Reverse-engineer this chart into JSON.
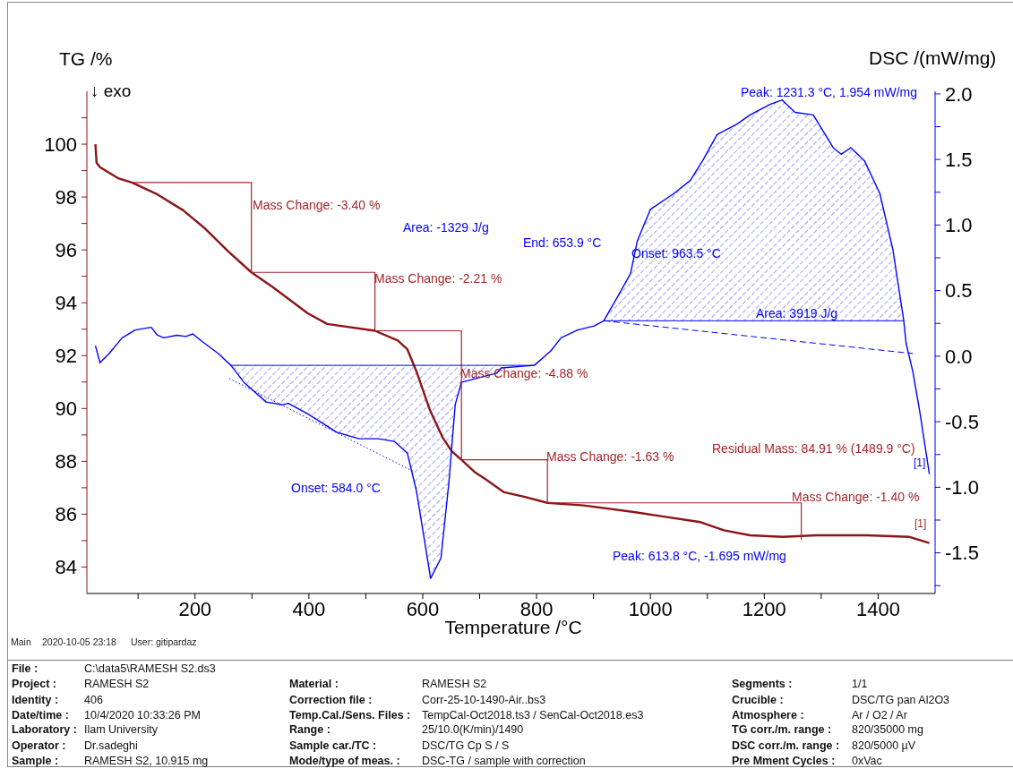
{
  "chart_data": [
    {
      "type": "line",
      "xlabel": "Temperature /°C",
      "ylabel": "TG /%",
      "y2label": "DSC /(mW/mg)",
      "annotations": [
        "↓ exo",
        "Peak: 1231.3 °C, 1.954 mW/mg",
        "Mass Change: -3.40 %",
        "Area: -1329 J/g",
        "End: 653.9 °C",
        "Onset: 963.5 °C",
        "Mass Change: -2.21 %",
        "Area: 3919 J/g",
        "Mass Change: -4.88 %",
        "Residual Mass: 84.91 % (1489.9 °C)",
        "Mass Change: -1.63 %",
        "[1]",
        "Onset: 584.0 °C",
        "Mass Change: -1.40 %",
        "[1]",
        "Peak: 613.8 °C, -1.695 mW/mg"
      ],
      "xlim": [
        10,
        1500
      ],
      "xticks": [
        {
          "value": 100,
          "label": null
        },
        200,
        {
          "value": 300,
          "label": null
        },
        400,
        {
          "value": 500,
          "label": null
        },
        600,
        {
          "value": 700,
          "label": null
        },
        800,
        {
          "value": 900,
          "label": null
        },
        1000,
        {
          "value": 1100,
          "label": null
        },
        1200,
        {
          "value": 1300,
          "label": null
        },
        1400
      ],
      "ylim": [
        83,
        102
      ],
      "yticks": [
        84,
        {
          "value": 85,
          "label": null
        },
        86,
        {
          "value": 87,
          "label": null
        },
        88,
        {
          "value": 89,
          "label": null
        },
        90,
        {
          "value": 91,
          "label": null
        },
        92,
        {
          "value": 93,
          "label": null
        },
        94,
        {
          "value": 95,
          "label": null
        },
        96,
        {
          "value": 97,
          "label": null
        },
        98,
        {
          "value": 99,
          "label": null
        },
        100,
        {
          "value": 101,
          "label": null
        }
      ],
      "y2lim": [
        -1.81,
        2.02
      ],
      "y2ticks": [
        {
          "value": -1.75,
          "label": null
        },
        -1.5,
        {
          "value": -1.25,
          "label": null
        },
        {
          "value": -1,
          "label": "-1.0"
        },
        {
          "value": -0.75,
          "label": null
        },
        -0.5,
        {
          "value": -0.25,
          "label": null
        },
        {
          "value": 0,
          "label": "0.0"
        },
        {
          "value": 0.25,
          "label": null
        },
        0.5,
        {
          "value": 0.75,
          "label": null
        },
        {
          "value": 1,
          "label": "1.0"
        },
        {
          "value": 1.25,
          "label": null
        },
        1.5,
        {
          "value": 1.75,
          "label": null
        },
        {
          "value": 2,
          "label": "2.0"
        }
      ],
      "series": [
        {
          "type": "line",
          "color": "#8c1515",
          "x": [
            25,
            27,
            33,
            66,
            89,
            134,
            179,
            218,
            258,
            299,
            336,
            398,
            432,
            516,
            556,
            573,
            589,
            612,
            635,
            651,
            668,
            691,
            709,
            743,
            778,
            819,
            883,
            971,
            1029,
            1088,
            1129,
            1175,
            1233,
            1291,
            1380,
            1455,
            1489.9
          ],
          "values": [
            100.0,
            99.3,
            99.13,
            98.7,
            98.55,
            98.1,
            97.5,
            96.8,
            95.95,
            95.15,
            94.6,
            93.6,
            93.2,
            92.94,
            92.57,
            92.24,
            91.4,
            89.97,
            88.9,
            88.38,
            88.06,
            87.6,
            87.34,
            86.83,
            86.66,
            86.43,
            86.33,
            86.08,
            85.89,
            85.7,
            85.39,
            85.2,
            85.14,
            85.2,
            85.2,
            85.14,
            84.91
          ]
        },
        {
          "type": "line",
          "color": "#0000ff",
          "axis": "y2",
          "x": [
            25,
            33,
            49,
            72,
            95,
            123,
            134,
            145,
            168,
            184,
            196,
            213,
            241,
            263,
            286,
            325,
            353,
            364,
            398,
            449,
            488,
            522,
            550,
            573,
            589,
            601,
            613.8,
            632,
            646,
            657,
            668,
            702,
            730,
            738,
            796,
            825,
            843,
            872,
            901,
            918,
            942,
            965,
            977,
            1000,
            1041,
            1070,
            1093,
            1117,
            1152,
            1175,
            1210,
            1231.3,
            1254,
            1286,
            1321,
            1335,
            1352,
            1376,
            1403,
            1426,
            1445,
            1449,
            1461,
            1473,
            1490
          ],
          "values": [
            0.08,
            -0.05,
            0.02,
            0.14,
            0.2,
            0.22,
            0.16,
            0.14,
            0.16,
            0.15,
            0.17,
            0.11,
            0.02,
            -0.07,
            -0.2,
            -0.35,
            -0.37,
            -0.36,
            -0.44,
            -0.58,
            -0.63,
            -0.63,
            -0.65,
            -0.74,
            -1.03,
            -1.35,
            -1.695,
            -1.54,
            -0.96,
            -0.37,
            -0.2,
            -0.16,
            -0.13,
            -0.09,
            -0.07,
            0.04,
            0.14,
            0.2,
            0.23,
            0.27,
            0.45,
            0.63,
            0.88,
            1.12,
            1.24,
            1.34,
            1.5,
            1.69,
            1.77,
            1.84,
            1.92,
            1.954,
            1.86,
            1.84,
            1.59,
            1.54,
            1.59,
            1.49,
            1.24,
            0.81,
            0.27,
            0.1,
            -0.12,
            -0.42,
            -0.9
          ],
          "lower": [
            null,
            null,
            null,
            null,
            null,
            null,
            null,
            null,
            null,
            null,
            null,
            null,
            null,
            -0.07,
            -0.2,
            -0.35,
            -0.37,
            -0.36,
            -0.44,
            -0.58,
            -0.63,
            -0.63,
            -0.65,
            -0.74,
            -1.03,
            -1.35,
            -1.695,
            -1.54,
            -0.96,
            -0.37,
            -0.2,
            -0.16,
            -0.13,
            -0.09,
            -0.07,
            null,
            null,
            null,
            null,
            0.27,
            0.27,
            0.27,
            0.27,
            0.27,
            0.27,
            0.27,
            0.27,
            0.27,
            0.27,
            0.27,
            0.27,
            0.27,
            0.27,
            0.27,
            0.27,
            0.27,
            0.27,
            0.27,
            0.27,
            0.27,
            0.27,
            null,
            null,
            null,
            null
          ],
          "upper": [
            null,
            null,
            null,
            null,
            null,
            null,
            null,
            null,
            null,
            null,
            null,
            null,
            null,
            -0.07,
            -0.07,
            -0.07,
            -0.07,
            -0.07,
            -0.07,
            -0.07,
            -0.07,
            -0.07,
            -0.07,
            -0.07,
            -0.07,
            -0.07,
            -0.07,
            -0.07,
            -0.07,
            -0.07,
            -0.07,
            -0.07,
            -0.07,
            -0.07,
            -0.07,
            null,
            null,
            null,
            null,
            0.27,
            0.45,
            0.63,
            0.88,
            1.12,
            1.24,
            1.34,
            1.5,
            1.69,
            1.77,
            1.84,
            1.92,
            1.954,
            1.86,
            1.84,
            1.59,
            1.54,
            1.59,
            1.49,
            1.24,
            0.81,
            0.27,
            null,
            null,
            null,
            null
          ]
        },
        {
          "type": "step",
          "color": "#a3262a",
          "x": [
            88,
            299,
            516,
            668,
            819,
            1265
          ],
          "values": [
            98.55,
            95.15,
            92.94,
            88.06,
            86.43,
            85.03
          ]
        },
        {
          "type": "line",
          "color": "#0000ff",
          "axis": "y2",
          "line_style": "dotted",
          "x": [
            260,
            584
          ],
          "values": [
            -0.17,
            -0.88
          ]
        },
        {
          "type": "line",
          "color": "#0000ff",
          "axis": "y2",
          "line_style": "dashed",
          "x": [
            918,
            1461
          ],
          "values": [
            0.27,
            0.02
          ]
        },
        {
          "type": "line",
          "color": "#0000ff",
          "axis": "y2",
          "x": [
            263,
            796
          ],
          "values": [
            -0.07,
            -0.07
          ]
        },
        {
          "type": "line",
          "color": "#0000ff",
          "axis": "y2",
          "x": [
            918,
            1445
          ],
          "values": [
            0.27,
            0.27
          ]
        }
      ]
    },
    {
      "type": "other",
      "annotations": [
        "Main",
        "2020-10-05 23:18",
        "User: gitipardaz",
        "File :",
        "C:\\data5\\RAMESH S2.ds3",
        "Project :",
        "RAMESH S2",
        "Material :",
        "RAMESH S2",
        "Segments :",
        "1/1",
        "Identity :",
        "406",
        "Correction file :",
        "Corr-25-10-1490-Air..bs3",
        "Crucible :",
        "DSC/TG pan Al2O3",
        "Date/time :",
        "10/4/2020 10:33:26 PM",
        "Temp.Cal./Sens. Files :",
        "TempCal-Oct2018.ts3 / SenCal-Oct2018.es3",
        "Atmosphere :",
        "Ar / O2 / Ar",
        "Laboratory :",
        "Ilam University",
        "Range :",
        "25/10.0(K/min)/1490",
        "TG corr./m. range :",
        "820/35000 mg",
        "Operator :",
        "Dr.sadeghi",
        "Sample car./TC :",
        "DSC/TG Cp S / S",
        "DSC corr./m. range :",
        "820/5000 µV",
        "Sample :",
        "RAMESH S2, 10.915 mg",
        "Mode/type of meas. :",
        "DSC-TG / sample with correction",
        "Pre Mment Cycles :",
        "0xVac"
      ]
    }
  ]
}
